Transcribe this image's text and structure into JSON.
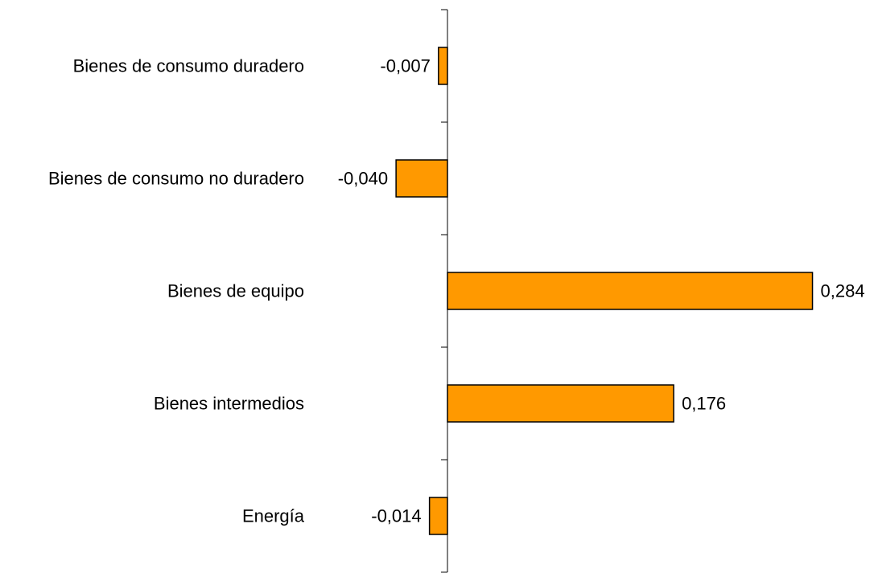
{
  "chart_data": {
    "type": "bar",
    "orientation": "horizontal",
    "categories": [
      "Bienes de consumo duradero",
      "Bienes de consumo no duradero",
      "Bienes de equipo",
      "Bienes intermedios",
      "Energía"
    ],
    "values": [
      -0.007,
      -0.04,
      0.284,
      0.176,
      -0.014
    ],
    "value_labels": [
      "-0,007",
      "-0,040",
      "0,284",
      "0,176",
      "-0,014"
    ],
    "title": "",
    "xlabel": "",
    "ylabel": "",
    "xlim": [
      -0.04,
      0.284
    ],
    "grid": false,
    "legend": "none",
    "bar_color": "#FF9900",
    "bar_border_color": "#000000"
  }
}
